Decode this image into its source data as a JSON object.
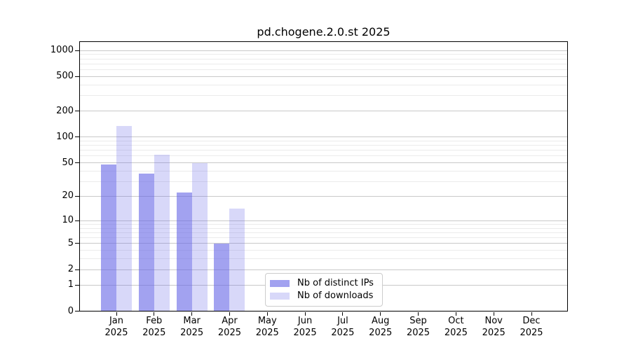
{
  "chart_data": {
    "type": "bar",
    "title": "pd.chogene.2.0.st 2025",
    "categories": [
      "Jan 2025",
      "Feb 2025",
      "Mar 2025",
      "Apr 2025",
      "May 2025",
      "Jun 2025",
      "Jul 2025",
      "Aug 2025",
      "Sep 2025",
      "Oct 2025",
      "Nov 2025",
      "Dec 2025"
    ],
    "series": [
      {
        "name": "Nb of distinct IPs",
        "color": "rgba(100,100,230,0.60)",
        "values": [
          48,
          37,
          22,
          5,
          0,
          0,
          0,
          0,
          0,
          0,
          0,
          0
        ]
      },
      {
        "name": "Nb of downloads",
        "color": "rgba(100,100,230,0.25)",
        "values": [
          135,
          62,
          50,
          14,
          0,
          0,
          0,
          0,
          0,
          0,
          0,
          0
        ]
      }
    ],
    "xlabel": "",
    "ylabel": "",
    "yscale": "log10(value+1)",
    "y_major_ticks": [
      0,
      1,
      2,
      5,
      10,
      20,
      50,
      100,
      200,
      500,
      1000
    ],
    "y_minor_ticks": [
      3,
      4,
      6,
      7,
      8,
      9,
      30,
      40,
      60,
      70,
      80,
      90,
      300,
      400,
      600,
      700,
      800,
      900
    ],
    "ylim": [
      0,
      1270
    ],
    "grid": true,
    "legend_position": "lower center inside plot",
    "colors": {
      "major_grid": "#c9c9c9",
      "minor_grid": "#ebebeb",
      "axis": "#000000",
      "text": "#000000",
      "background": "#ffffff"
    }
  }
}
